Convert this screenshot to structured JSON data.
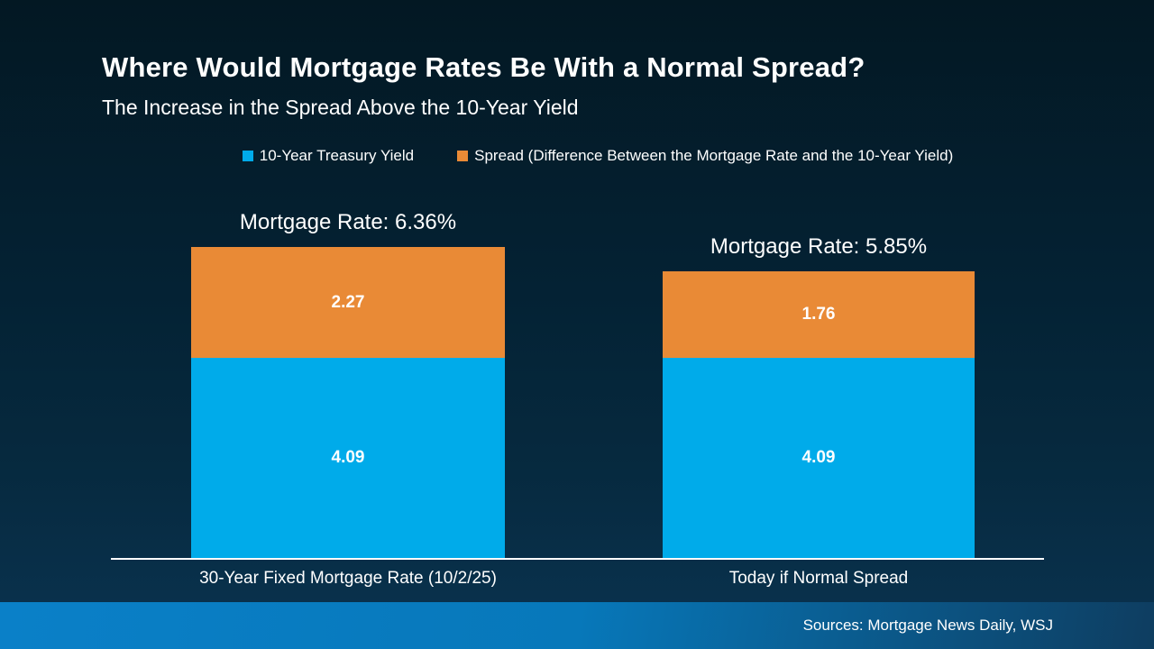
{
  "page": {
    "title": "Where Would Mortgage Rates Be With a Normal Spread?",
    "subtitle": "The Increase in the Spread Above the 10-Year Yield",
    "source": "Sources: Mortgage News Daily, WSJ"
  },
  "colors": {
    "treasury_blue": "#00ABEA",
    "spread_orange": "#E98A36",
    "background_top": "#031823",
    "background_bottom": "#0A3350",
    "footer_left": "#0A80C8",
    "footer_right": "#0E3D60",
    "axis_line": "#FFFFFF",
    "text": "#FFFFFF"
  },
  "chart_data": {
    "type": "bar",
    "stacked": true,
    "title": "Where Would Mortgage Rates Be With a Normal Spread?",
    "subtitle": "The Increase in the Spread Above the 10-Year Yield",
    "categories": [
      "30-Year Fixed Mortgage Rate (10/2/25)",
      "Today if Normal Spread"
    ],
    "series": [
      {
        "name": "10-Year Treasury Yield",
        "color": "#00ABEA",
        "values": [
          "4.09",
          "4.09"
        ]
      },
      {
        "name": "Spread (Difference Between the Mortgage Rate and the 10-Year Yield)",
        "color": "#E98A36",
        "values": [
          "2.27",
          "1.76"
        ]
      }
    ],
    "totals": [
      "Mortgage Rate: 6.36%",
      "Mortgage Rate: 5.85%"
    ],
    "total_values": [
      "6.36",
      "5.85"
    ],
    "legend_position": "top-center",
    "grid": false,
    "ylim": [
      0,
      7
    ]
  }
}
